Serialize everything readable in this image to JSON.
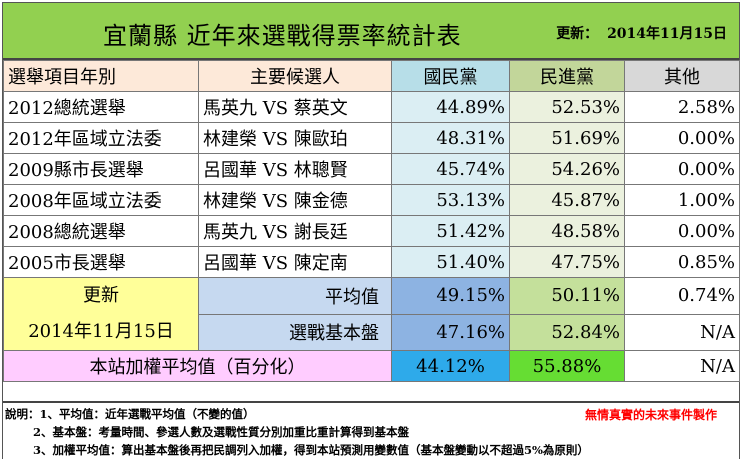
{
  "title": "宜蘭縣 近年來選戰得票率統計表",
  "update_label": "更新：",
  "update_date": "2014年11月15日",
  "headers": {
    "item": "選舉項目年別",
    "candidates": "主要候選人",
    "kmt": "國民黨",
    "dpp": "民進黨",
    "other": "其他"
  },
  "rows": [
    {
      "item": "2012總統選舉",
      "candidates": "馬英九 VS 蔡英文",
      "kmt": "44.89%",
      "dpp": "52.53%",
      "other": "2.58%"
    },
    {
      "item": "2012年區域立法委",
      "candidates": "林建榮 VS 陳歐珀",
      "kmt": "48.31%",
      "dpp": "51.69%",
      "other": "0.00%"
    },
    {
      "item": "2009縣市長選舉",
      "candidates": "呂國華 VS 林聰賢",
      "kmt": "45.74%",
      "dpp": "54.26%",
      "other": "0.00%"
    },
    {
      "item": "2008年區域立法委",
      "candidates": "林建榮 VS 陳金德",
      "kmt": "53.13%",
      "dpp": "45.87%",
      "other": "1.00%"
    },
    {
      "item": "2008總統選舉",
      "candidates": "馬英九 VS 謝長廷",
      "kmt": "51.42%",
      "dpp": "48.58%",
      "other": "0.00%"
    },
    {
      "item": "2005市長選舉",
      "candidates": "呂國華 VS 陳定南",
      "kmt": "51.40%",
      "dpp": "47.75%",
      "other": "0.85%"
    }
  ],
  "update_block": {
    "label": "更新",
    "date": "2014年11月15日"
  },
  "average": {
    "label": "平均值",
    "kmt": "49.15%",
    "dpp": "50.11%",
    "other": "0.74%"
  },
  "base": {
    "label": "選戰基本盤",
    "kmt": "47.16%",
    "dpp": "52.84%",
    "other": "N/A"
  },
  "weighted": {
    "label": "本站加權平均值（百分化）",
    "kmt": "44.12%",
    "dpp": "55.88%",
    "other": "N/A"
  },
  "notes": {
    "n1": "說明：1、平均值：近年選戰平均值（不變的值）",
    "n2": "2、基本盤：考量時間、參選人數及選戰性質分別加重比重計算得到基本盤",
    "n3": "3、加權平均值：算出基本盤後再把民調列入加權，得到本站預測用變數值（基本盤變動以不超過5%為原則）",
    "maker": "無情真實的未來事件製作"
  },
  "colors": {
    "title_bg": "#92d050",
    "kmt_header": "#b7dee8",
    "dpp_header": "#c2d69a",
    "kmt_weighted": "#2eaaea",
    "dpp_weighted": "#66dd33",
    "update_bg": "#ffff99",
    "weighted_label_bg": "#ffccff",
    "maker_text": "#ff0000"
  }
}
